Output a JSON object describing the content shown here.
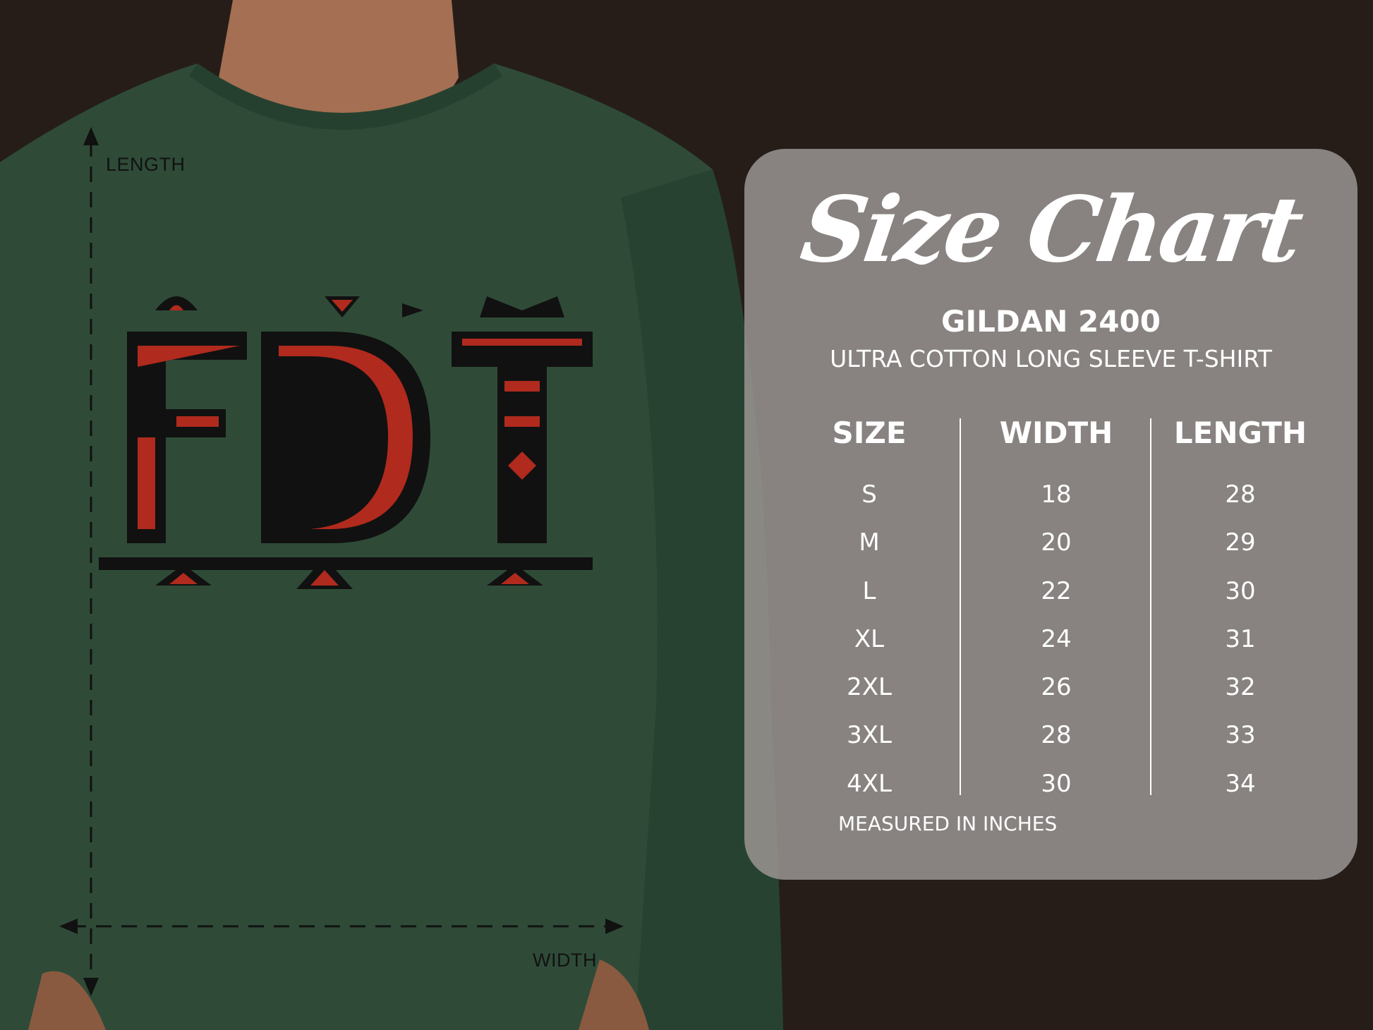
{
  "measure_labels": {
    "length": "LENGTH",
    "width": "WIDTH"
  },
  "shirt_logo": "FDT",
  "colors": {
    "background": "#261d19",
    "shirt": "#2f4b38",
    "panel": "#96928e",
    "logo_red": "#b02a1e",
    "logo_black": "#111111"
  },
  "size_chart": {
    "title": "Size Chart",
    "brand": "GILDAN 2400",
    "product": "ULTRA COTTON LONG SLEEVE T-SHIRT",
    "headers": [
      "SIZE",
      "WIDTH",
      "LENGTH"
    ],
    "sizes": [
      "S",
      "M",
      "L",
      "XL",
      "2XL",
      "3XL",
      "4XL"
    ],
    "widths": [
      "18",
      "20",
      "22",
      "24",
      "26",
      "28",
      "30"
    ],
    "lengths": [
      "28",
      "29",
      "30",
      "31",
      "32",
      "33",
      "34"
    ],
    "note": "MEASURED IN INCHES"
  }
}
